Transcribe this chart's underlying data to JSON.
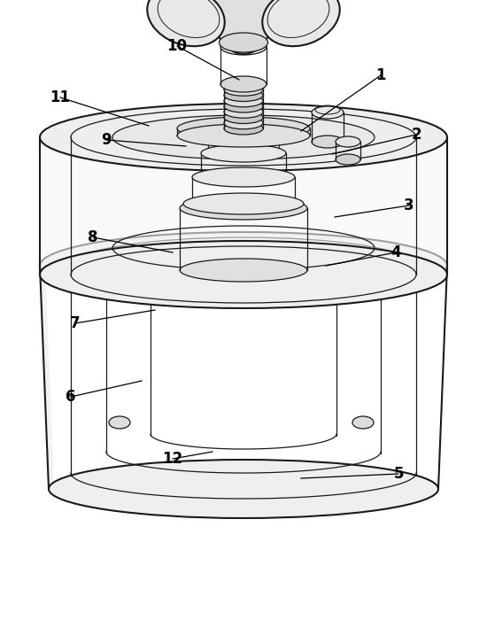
{
  "background_color": "#ffffff",
  "line_color": "#1a1a1a",
  "label_color": "#000000",
  "label_fontsize": 12,
  "fig_width": 5.5,
  "fig_height": 7.0,
  "dpi": 100
}
